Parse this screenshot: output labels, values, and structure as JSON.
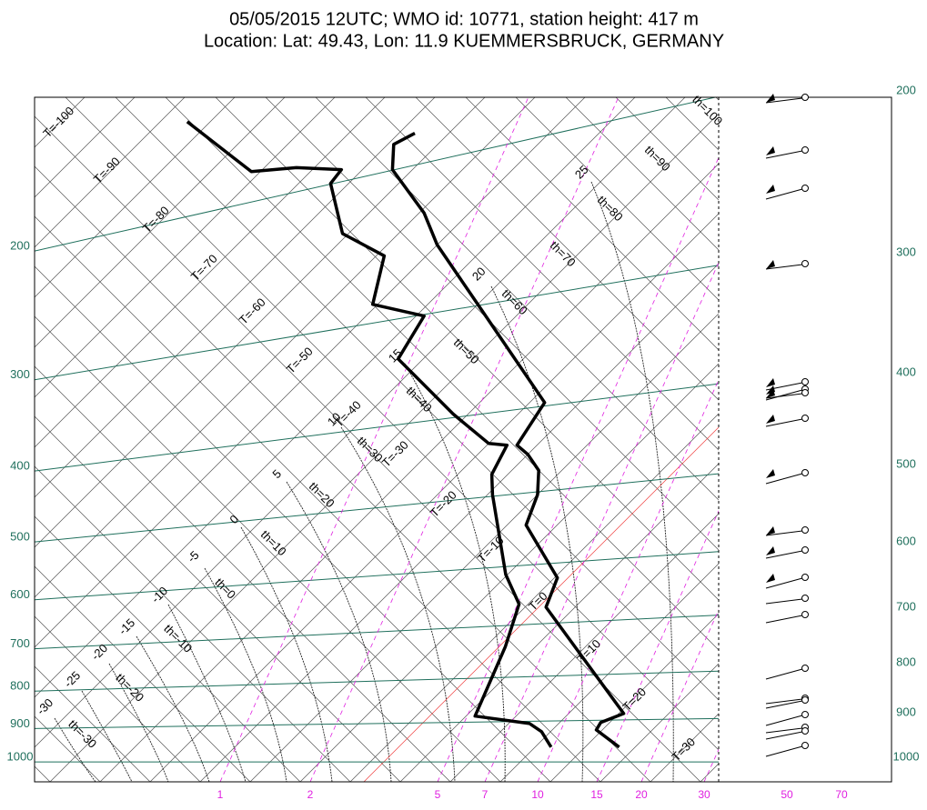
{
  "chart_data": {
    "type": "skewt",
    "title": "05/05/2015 12UTC; WMO id: 10771, station height: 417 m",
    "subtitle": "Location: Lat: 49.43, Lon: 11.9  KUEMMERSBRUCK, GERMANY",
    "ylim": [
      1080,
      125
    ],
    "log_scale": true,
    "yticks": [
      200,
      300,
      400,
      500,
      600,
      700,
      800,
      900,
      1000
    ],
    "y2ticks": [
      200,
      300,
      400,
      500,
      600,
      700,
      800,
      900,
      1000
    ],
    "mixing_ratio_ticks": [
      1,
      2,
      5,
      7,
      10,
      15,
      20,
      30
    ],
    "wind_speed_ticks": [
      50,
      70
    ],
    "isotherm_labels": [
      "T=-100",
      "T=-90",
      "T=-80",
      "T=-70",
      "T=-60",
      "T=-50",
      "T=-40",
      "T=-30",
      "T=-20",
      "T=-10",
      "T=0",
      "T=10",
      "T=20",
      "T=30"
    ],
    "dry_adiabat_labels": [
      "th=100",
      "th=90",
      "th=80",
      "th=70",
      "th=60",
      "th=50",
      "th=40",
      "th=30",
      "th=20",
      "th=10",
      "th=0",
      "th=-10",
      "th=-20",
      "th=-30"
    ],
    "moist_adiabat_labels": [
      "25",
      "20",
      "15",
      "10",
      "5",
      "0",
      "-5",
      "-10",
      "-15",
      "-20",
      "-25",
      "-30"
    ],
    "series": [
      {
        "color": "#000000",
        "x": [
          23.4,
          19.4,
          19.1,
          20.5,
          2.1,
          0.3,
          -8.1,
          -10.0,
          -12.3,
          -15.0,
          -17.0,
          -18.5,
          -35.9,
          -45.0,
          -49.5,
          -57.0,
          -59.4,
          -58.4
        ],
        "y": [
          968,
          917,
          896,
          871,
          623,
          568,
          481,
          437,
          405,
          385,
          374,
          327,
          236,
          199,
          180,
          157,
          145,
          140
        ]
      },
      {
        "color": "#000000",
        "x": [
          16.6,
          14.1,
          12.1,
          5.9,
          2.0,
          -0.9,
          -5.2,
          -14.5,
          -16.6,
          -18.0,
          -20.0,
          -26.5,
          -37.5,
          -39.2,
          -45.5,
          -49.2,
          -55.6,
          -61.8,
          -62.1,
          -66.8,
          -70.9,
          -82.3
        ],
        "y": [
          968,
          922,
          899,
          878,
          706,
          617,
          562,
          437,
          410,
          374,
          372,
          339,
          285,
          249,
          240,
          206,
          192,
          164,
          157,
          156,
          158,
          135
        ]
      }
    ]
  }
}
